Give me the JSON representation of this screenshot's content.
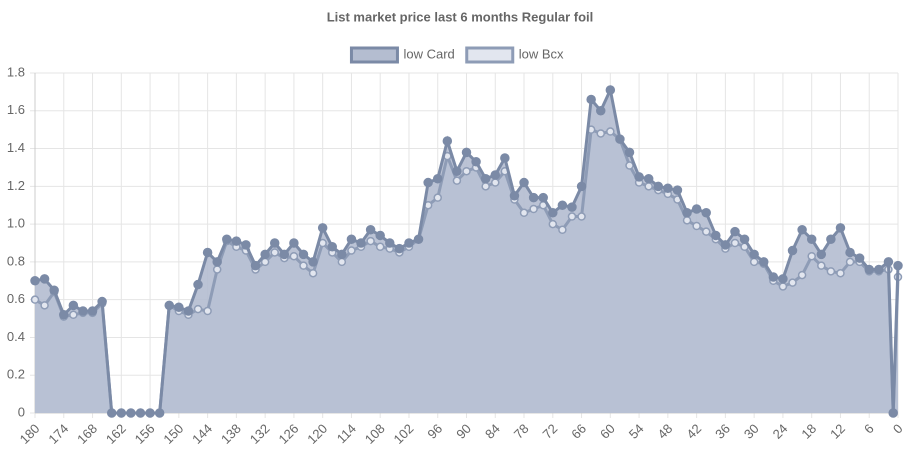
{
  "chart_data": {
    "type": "line",
    "title": "List market price last 6 months Regular foil",
    "legend": "top",
    "grid": true,
    "x": [
      180,
      178,
      176,
      174,
      172,
      170,
      168,
      166,
      164,
      162,
      160,
      158,
      156,
      154,
      152,
      150,
      148,
      146,
      144,
      142,
      140,
      138,
      136,
      134,
      132,
      130,
      128,
      126,
      124,
      122,
      120,
      118,
      116,
      114,
      112,
      110,
      108,
      106,
      104,
      102,
      100,
      98,
      96,
      94,
      92,
      90,
      88,
      86,
      84,
      82,
      80,
      78,
      76,
      74,
      72,
      70,
      68,
      66,
      64,
      62,
      60,
      58,
      56,
      54,
      52,
      50,
      48,
      46,
      44,
      42,
      40,
      38,
      36,
      34,
      32,
      30,
      28,
      26,
      24,
      22,
      20,
      18,
      16,
      14,
      12,
      10,
      8,
      6,
      4,
      2,
      1,
      0
    ],
    "xlim": [
      180,
      0
    ],
    "xticks": [
      180,
      174,
      168,
      162,
      156,
      150,
      144,
      138,
      132,
      126,
      120,
      114,
      108,
      102,
      96,
      90,
      84,
      78,
      72,
      66,
      60,
      54,
      48,
      42,
      36,
      30,
      24,
      18,
      12,
      6,
      0
    ],
    "ylim": [
      0,
      1.8
    ],
    "yticks": [
      0,
      0.2,
      0.4,
      0.6,
      0.8,
      {
        "value": 1,
        "label": "1.0"
      },
      1.2,
      1.4,
      1.6,
      1.8
    ],
    "series": [
      {
        "name": "low Card",
        "color": "#7b8aa6",
        "fill_color": "#b4bdd0",
        "values": [
          0.7,
          0.71,
          0.65,
          0.52,
          0.57,
          0.54,
          0.54,
          0.59,
          0,
          0,
          0,
          0,
          0,
          0,
          0.57,
          0.56,
          0.54,
          0.68,
          0.85,
          0.8,
          0.92,
          0.91,
          0.89,
          0.78,
          0.84,
          0.9,
          0.84,
          0.9,
          0.84,
          0.8,
          0.98,
          0.88,
          0.84,
          0.92,
          0.9,
          0.97,
          0.94,
          0.9,
          0.87,
          0.9,
          0.92,
          1.22,
          1.24,
          1.44,
          1.28,
          1.38,
          1.33,
          1.24,
          1.26,
          1.35,
          1.15,
          1.22,
          1.14,
          1.14,
          1.06,
          1.1,
          1.09,
          1.2,
          1.66,
          1.6,
          1.71,
          1.45,
          1.38,
          1.25,
          1.24,
          1.2,
          1.19,
          1.18,
          1.06,
          1.08,
          1.06,
          0.94,
          0.89,
          0.96,
          0.92,
          0.84,
          0.8,
          0.72,
          0.71,
          0.86,
          0.97,
          0.92,
          0.84,
          0.92,
          0.98,
          0.85,
          0.82,
          0.76,
          0.76,
          0.8,
          0,
          0.78
        ]
      },
      {
        "name": "low Bcx",
        "color": "#8e9cb6",
        "fill_color": "#e2e6ef",
        "values": [
          0.6,
          0.57,
          0.64,
          0.51,
          0.52,
          0.53,
          0.53,
          0.58,
          0,
          0,
          0,
          0,
          0,
          0,
          0.57,
          0.54,
          0.52,
          0.55,
          0.54,
          0.76,
          0.91,
          0.88,
          0.86,
          0.76,
          0.8,
          0.85,
          0.82,
          0.83,
          0.78,
          0.74,
          0.9,
          0.85,
          0.8,
          0.86,
          0.88,
          0.91,
          0.88,
          0.87,
          0.85,
          0.88,
          0.92,
          1.1,
          1.14,
          1.36,
          1.23,
          1.28,
          1.3,
          1.2,
          1.22,
          1.28,
          1.13,
          1.06,
          1.08,
          1.1,
          1.0,
          0.97,
          1.04,
          1.04,
          1.5,
          1.48,
          1.49,
          1.45,
          1.31,
          1.22,
          1.2,
          1.18,
          1.16,
          1.13,
          1.02,
          0.99,
          0.96,
          0.92,
          0.87,
          0.9,
          0.88,
          0.8,
          0.79,
          0.7,
          0.67,
          0.69,
          0.73,
          0.83,
          0.78,
          0.75,
          0.74,
          0.8,
          0.8,
          0.75,
          0.75,
          0.76,
          0,
          0.72
        ]
      }
    ]
  }
}
